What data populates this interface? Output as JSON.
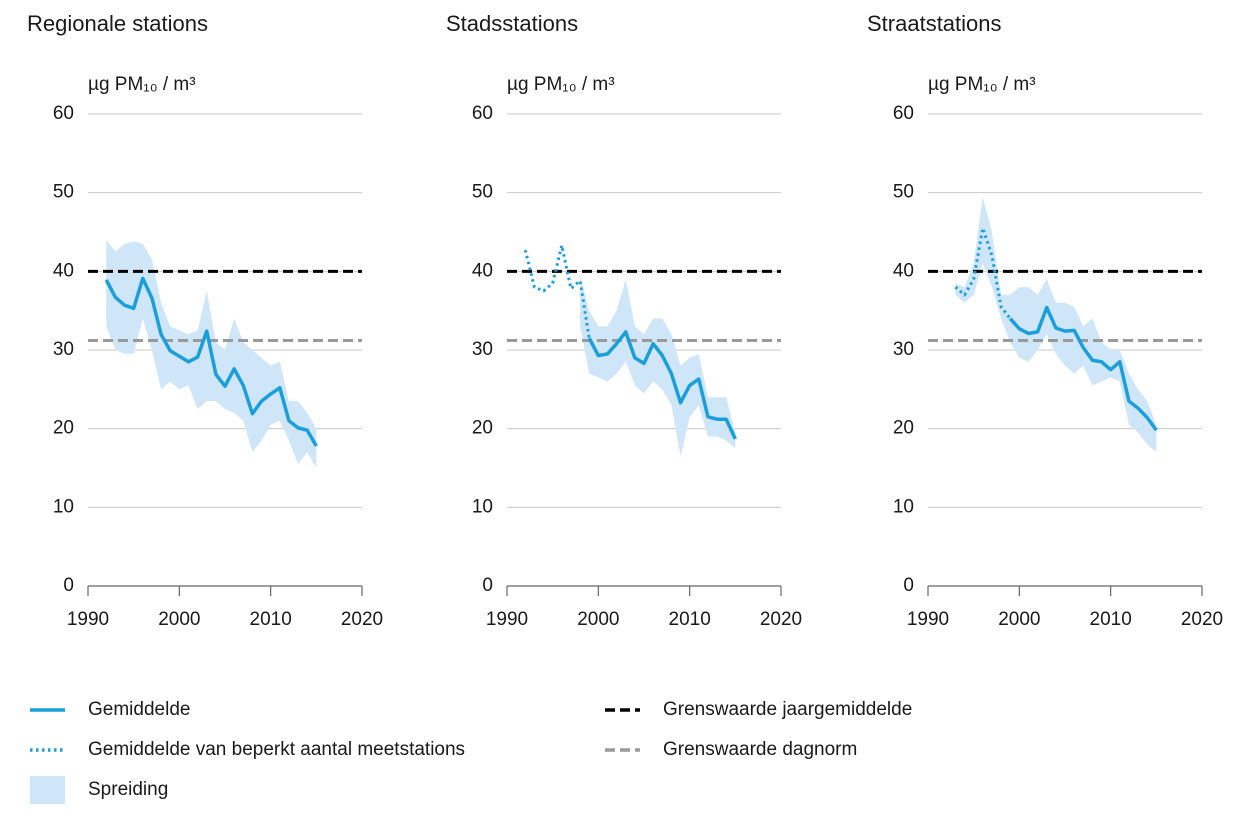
{
  "chart_data": [
    {
      "type": "line",
      "title": "Regionale stations",
      "y_label": "µg PM₁₀ / m³",
      "x": [
        1992,
        1993,
        1994,
        1995,
        1996,
        1997,
        1998,
        1999,
        2000,
        2001,
        2002,
        2003,
        2004,
        2005,
        2006,
        2007,
        2008,
        2009,
        2010,
        2011,
        2012,
        2013,
        2014,
        2015
      ],
      "xlim": [
        1990,
        2020
      ],
      "xticks": [
        1990,
        2000,
        2010,
        2020
      ],
      "ylim": [
        0,
        60
      ],
      "yticks": [
        0,
        10,
        20,
        30,
        40,
        50,
        60
      ],
      "grid": true,
      "series": [
        {
          "style": "band",
          "color": "#cfe6f8",
          "high": [
            44,
            42.5,
            43.5,
            43.8,
            43.5,
            41.5,
            36,
            33,
            32.5,
            32,
            32.5,
            37.5,
            31,
            30,
            34,
            31,
            30,
            29,
            28,
            28.5,
            23.5,
            23.5,
            22,
            20
          ],
          "low": [
            33,
            30,
            29.5,
            29.5,
            34,
            30,
            25,
            26,
            25,
            25.5,
            22.5,
            23.5,
            23.5,
            22.5,
            22,
            21,
            17,
            18.5,
            20.5,
            21,
            18.5,
            15.5,
            17,
            15
          ]
        },
        {
          "style": "solid",
          "color": "#1a9fdc",
          "values": [
            38.9,
            36.7,
            35.7,
            35.3,
            39.1,
            36.6,
            32,
            29.9,
            29.2,
            28.5,
            29.1,
            32.4,
            26.9,
            25.4,
            27.6,
            25.5,
            21.9,
            23.5,
            24.4,
            25.2,
            21,
            20.1,
            19.8,
            17.8
          ]
        }
      ],
      "reference_lines": [
        {
          "value": 40,
          "color": "#000000",
          "style": "dashed"
        },
        {
          "value": 31.2,
          "color": "#999999",
          "style": "dashed"
        }
      ]
    },
    {
      "type": "line",
      "title": "Stadsstations",
      "y_label": "µg PM₁₀ / m³",
      "x": [
        1992,
        1993,
        1994,
        1995,
        1996,
        1997,
        1998,
        1999,
        2000,
        2001,
        2002,
        2003,
        2004,
        2005,
        2006,
        2007,
        2008,
        2009,
        2010,
        2011,
        2012,
        2013,
        2014,
        2015
      ],
      "xlim": [
        1990,
        2020
      ],
      "xticks": [
        1990,
        2000,
        2010,
        2020
      ],
      "ylim": [
        0,
        60
      ],
      "yticks": [
        0,
        10,
        20,
        30,
        40,
        50,
        60
      ],
      "grid": true,
      "series": [
        {
          "style": "band",
          "color": "#cfe6f8",
          "high": [
            null,
            null,
            null,
            null,
            null,
            null,
            39.5,
            35,
            33,
            33,
            35,
            39,
            33,
            32,
            34,
            34,
            32,
            28,
            29,
            29.5,
            24,
            24,
            24,
            19.5
          ],
          "low": [
            null,
            null,
            null,
            null,
            null,
            null,
            33,
            27,
            26.5,
            26,
            27,
            28.5,
            25.5,
            24.5,
            26,
            25,
            23,
            16.5,
            21.5,
            23,
            19,
            19,
            18.5,
            17.5
          ]
        },
        {
          "style": "dotted",
          "color": "#1a9fdc",
          "values": [
            42.7,
            38,
            37.5,
            38.5,
            43.3,
            37.8,
            38.8,
            31.5,
            null,
            null,
            null,
            null,
            null,
            null,
            null,
            null,
            null,
            null,
            null,
            null,
            null,
            null,
            null,
            null
          ]
        },
        {
          "style": "solid",
          "color": "#1a9fdc",
          "values": [
            null,
            null,
            null,
            null,
            null,
            null,
            null,
            31.5,
            29.3,
            29.5,
            30.8,
            32.3,
            29,
            28.3,
            30.8,
            29.3,
            27,
            23.3,
            25.5,
            26.3,
            21.5,
            21.2,
            21.2,
            18.7
          ]
        }
      ],
      "reference_lines": [
        {
          "value": 40,
          "color": "#000000",
          "style": "dashed"
        },
        {
          "value": 31.2,
          "color": "#999999",
          "style": "dashed"
        }
      ]
    },
    {
      "type": "line",
      "title": "Straatstations",
      "y_label": "µg PM₁₀ / m³",
      "x": [
        1993,
        1994,
        1995,
        1996,
        1997,
        1998,
        1999,
        2000,
        2001,
        2002,
        2003,
        2004,
        2005,
        2006,
        2007,
        2008,
        2009,
        2010,
        2011,
        2012,
        2013,
        2014,
        2015
      ],
      "xlim": [
        1990,
        2020
      ],
      "xticks": [
        1990,
        2000,
        2010,
        2020
      ],
      "ylim": [
        0,
        60
      ],
      "yticks": [
        0,
        10,
        20,
        30,
        40,
        50,
        60
      ],
      "grid": true,
      "series": [
        {
          "style": "band",
          "color": "#cfe6f8",
          "high": [
            38.5,
            38,
            41,
            49.5,
            45,
            37,
            37,
            38,
            38,
            37,
            39,
            36,
            36,
            35.5,
            33,
            34,
            31,
            30,
            30,
            27,
            25,
            23.5,
            20.5
          ],
          "low": [
            37,
            36,
            37,
            41,
            38,
            34,
            31,
            29,
            28.5,
            30,
            32,
            29.5,
            28,
            27,
            28,
            25.5,
            26,
            26.5,
            26,
            20.5,
            19.5,
            18,
            17
          ]
        },
        {
          "style": "dotted",
          "color": "#1a9fdc",
          "values": [
            38,
            37,
            39,
            45.5,
            42,
            35.5,
            34,
            null,
            null,
            null,
            null,
            null,
            null,
            null,
            null,
            null,
            null,
            null,
            null,
            null,
            null,
            null,
            null
          ]
        },
        {
          "style": "solid",
          "color": "#1a9fdc",
          "values": [
            null,
            null,
            null,
            null,
            null,
            null,
            34,
            32.7,
            32.1,
            32.3,
            35.4,
            32.8,
            32.4,
            32.5,
            30.3,
            28.7,
            28.5,
            27.5,
            28.5,
            23.5,
            22.6,
            21.4,
            19.8
          ]
        }
      ],
      "reference_lines": [
        {
          "value": 40,
          "color": "#000000",
          "style": "dashed"
        },
        {
          "value": 31.2,
          "color": "#999999",
          "style": "dashed"
        }
      ]
    }
  ],
  "legend": [
    {
      "name": "Gemiddelde",
      "style": "solid",
      "color": "#1a9fdc"
    },
    {
      "name": "Gemiddelde van beperkt aantal meetstations",
      "style": "dotted",
      "color": "#1a9fdc"
    },
    {
      "name": "Spreiding",
      "style": "band",
      "color": "#cfe6f8"
    },
    {
      "name": "Grenswaarde jaargemiddelde",
      "style": "dashed",
      "color": "#000000"
    },
    {
      "name": "Grenswaarde dagnorm",
      "style": "dashed",
      "color": "#999999"
    }
  ]
}
